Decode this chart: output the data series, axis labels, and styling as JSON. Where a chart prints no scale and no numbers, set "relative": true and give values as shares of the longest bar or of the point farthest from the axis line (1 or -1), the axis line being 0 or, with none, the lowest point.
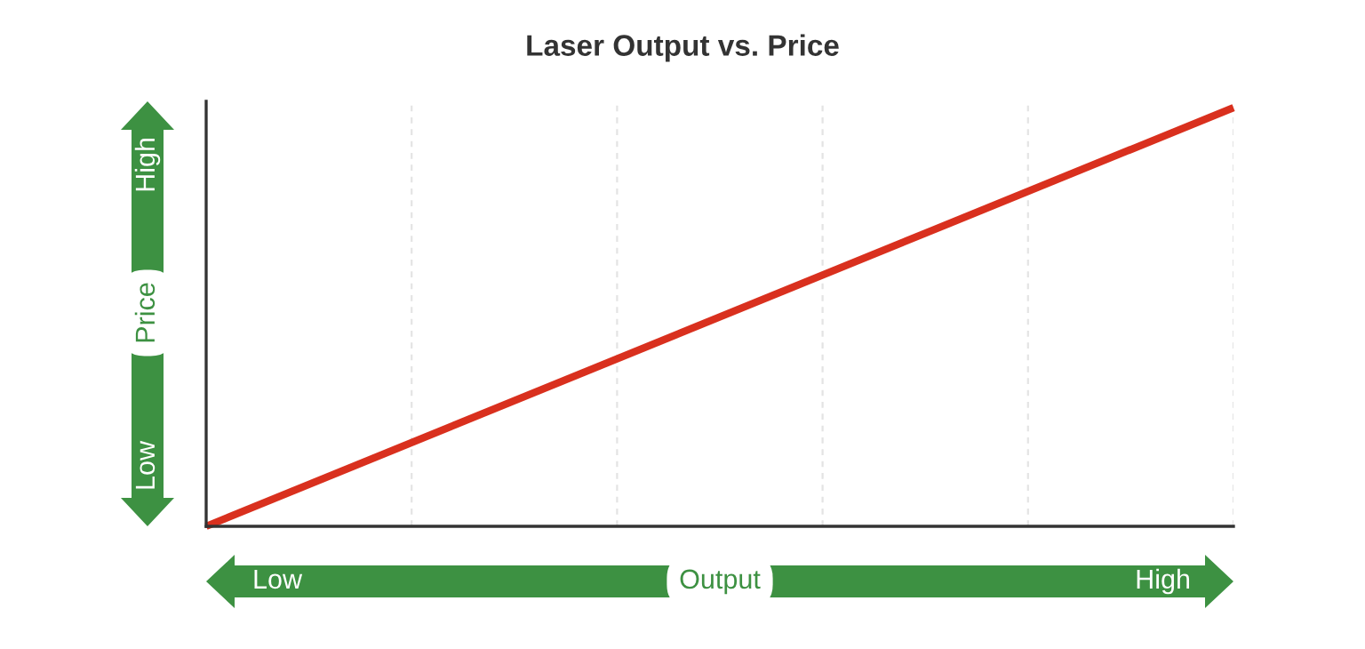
{
  "chart_data": {
    "type": "line",
    "title": "Laser Output vs. Price",
    "xlabel": "Output",
    "ylabel": "Price",
    "categories": [
      null,
      null
    ],
    "series": [
      {
        "color": "#d9301e",
        "values": [
          0,
          1
        ]
      }
    ],
    "relative": true,
    "grid": "x",
    "tick_labels": false,
    "annotations": [
      "Low",
      "High",
      "Low",
      "High"
    ]
  }
}
